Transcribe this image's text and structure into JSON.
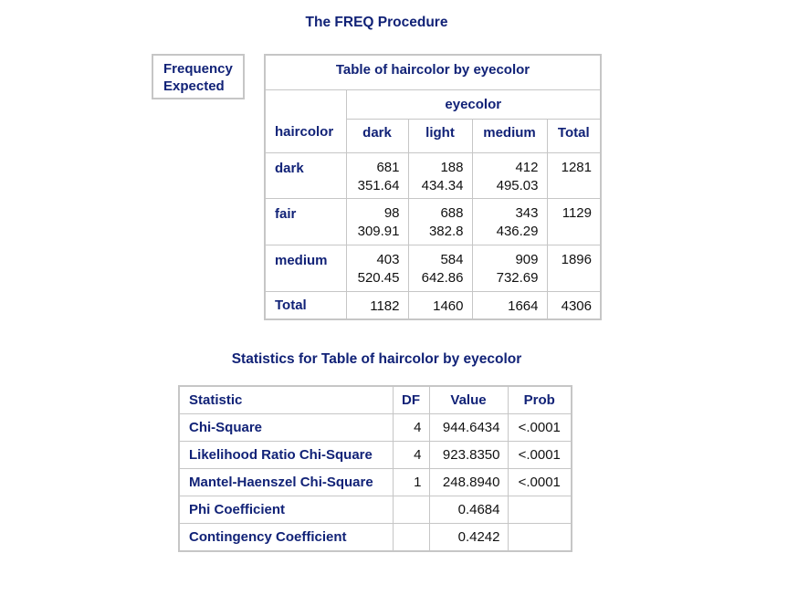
{
  "title": "The FREQ Procedure",
  "legend": {
    "line1": "Frequency",
    "line2": "Expected"
  },
  "crosstab": {
    "title": "Table of haircolor by eyecolor",
    "col_var": "eyecolor",
    "row_var": "haircolor",
    "columns": [
      "dark",
      "light",
      "medium",
      "Total"
    ],
    "rows": [
      {
        "label": "dark",
        "freq": [
          "681",
          "188",
          "412"
        ],
        "expected": [
          "351.64",
          "434.34",
          "495.03"
        ],
        "total": "1281"
      },
      {
        "label": "fair",
        "freq": [
          "98",
          "688",
          "343"
        ],
        "expected": [
          "309.91",
          "382.8",
          "436.29"
        ],
        "total": "1129"
      },
      {
        "label": "medium",
        "freq": [
          "403",
          "584",
          "909"
        ],
        "expected": [
          "520.45",
          "642.86",
          "732.69"
        ],
        "total": "1896"
      }
    ],
    "total_row": {
      "label": "Total",
      "values": [
        "1182",
        "1460",
        "1664",
        "4306"
      ]
    }
  },
  "stats": {
    "title": "Statistics for Table of haircolor by eyecolor",
    "headers": [
      "Statistic",
      "DF",
      "Value",
      "Prob"
    ],
    "rows": [
      {
        "statistic": "Chi-Square",
        "df": "4",
        "value": "944.6434",
        "prob": "<.0001"
      },
      {
        "statistic": "Likelihood Ratio Chi-Square",
        "df": "4",
        "value": "923.8350",
        "prob": "<.0001"
      },
      {
        "statistic": "Mantel-Haenszel Chi-Square",
        "df": "1",
        "value": "248.8940",
        "prob": "<.0001"
      },
      {
        "statistic": "Phi Coefficient",
        "df": "",
        "value": "0.4684",
        "prob": ""
      },
      {
        "statistic": "Contingency Coefficient",
        "df": "",
        "value": "0.4242",
        "prob": ""
      }
    ]
  }
}
